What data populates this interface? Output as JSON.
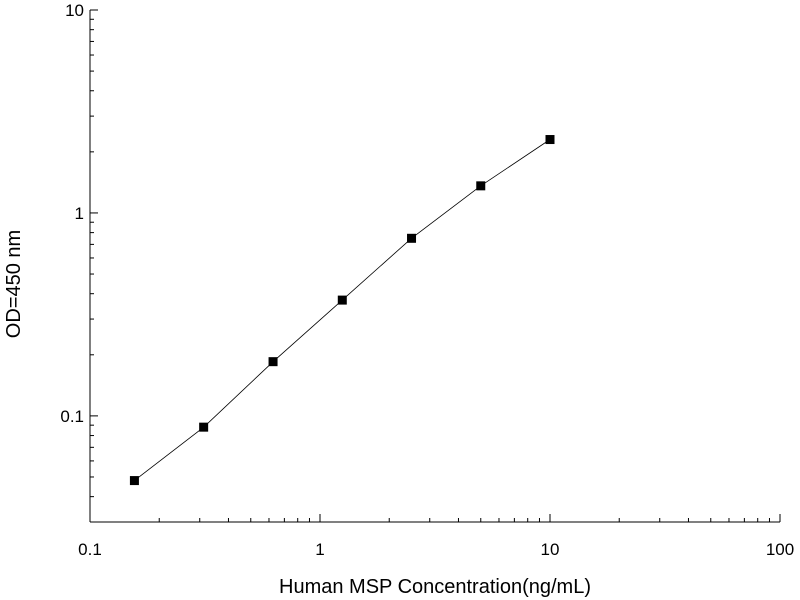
{
  "chart_data": {
    "type": "line",
    "title": "",
    "xlabel": "Human MSP Concentration(ng/mL)",
    "ylabel": "OD=450 nm",
    "xscale": "log",
    "yscale": "log",
    "xlim": [
      0.1,
      100
    ],
    "ylim": [
      0.03,
      10
    ],
    "x_tick_labels": [
      "0.1",
      "1",
      "10",
      "100"
    ],
    "y_tick_labels": [
      "0.1",
      "1",
      "10"
    ],
    "grid": false,
    "legend": "none",
    "marker": "square",
    "series": [
      {
        "x": [
          0.156,
          0.312,
          0.625,
          1.25,
          2.5,
          5,
          10
        ],
        "y": [
          0.048,
          0.088,
          0.185,
          0.372,
          0.75,
          1.36,
          2.3
        ]
      }
    ],
    "colors": {
      "axis": "#000000",
      "line": "#000000",
      "marker": "#000000"
    }
  }
}
